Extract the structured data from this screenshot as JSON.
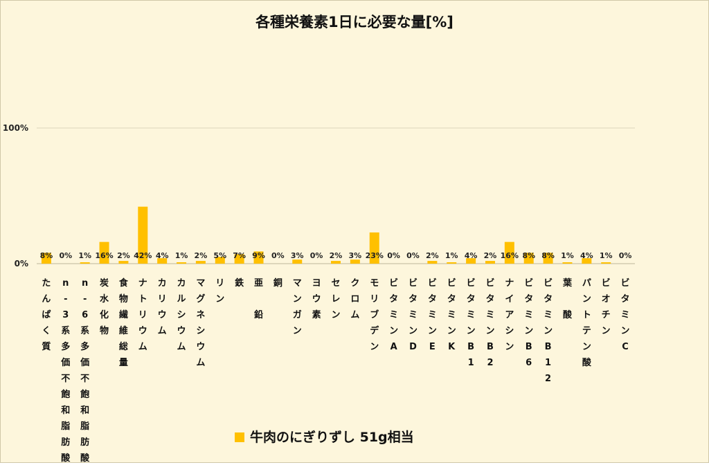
{
  "chart_data": {
    "type": "bar",
    "title": "各種栄養素1日に必要な量[%]",
    "xlabel": "",
    "ylabel": "",
    "ylim": [
      0,
      100
    ],
    "yticks": [
      "0%",
      "100%"
    ],
    "gridlines": true,
    "legend_position": "bottom",
    "bar_color": "#ffc000",
    "categories": [
      "たんぱく質",
      "n-3系多価不飽和脂肪酸",
      "n-6系多価不飽和脂肪酸",
      "炭水化物",
      "食物繊維総量",
      "ナトリウム",
      "カリウム",
      "カルシウム",
      "マグネシウム",
      "リン",
      "鉄",
      "亜　鉛",
      "銅",
      "マンガン",
      "ヨウ素",
      "セレン",
      "クロム",
      "モリブデン",
      "ビタミンA",
      "ビタミンD",
      "ビタミンE",
      "ビタミンK",
      "ビタミンB1",
      "ビタミンB2",
      "ナイアシン",
      "ビタミンB6",
      "ビタミンB12",
      "葉　酸",
      "パントテン酸",
      "ビオチン",
      "ビタミンC"
    ],
    "series": [
      {
        "name": "牛肉のにぎりずし 51g相当",
        "values": [
          8,
          0,
          1,
          16,
          2,
          42,
          4,
          1,
          2,
          5,
          7,
          9,
          0,
          3,
          0,
          2,
          3,
          23,
          0,
          0,
          2,
          1,
          4,
          2,
          16,
          8,
          8,
          1,
          4,
          1,
          0
        ],
        "labels": [
          "8%",
          "0%",
          "1%",
          "16%",
          "2%",
          "42%",
          "4%",
          "1%",
          "2%",
          "5%",
          "7%",
          "9%",
          "0%",
          "3%",
          "0%",
          "2%",
          "3%",
          "23%",
          "0%",
          "0%",
          "2%",
          "1%",
          "4%",
          "2%",
          "16%",
          "8%",
          "8%",
          "1%",
          "4%",
          "1%",
          "0%"
        ]
      }
    ]
  }
}
